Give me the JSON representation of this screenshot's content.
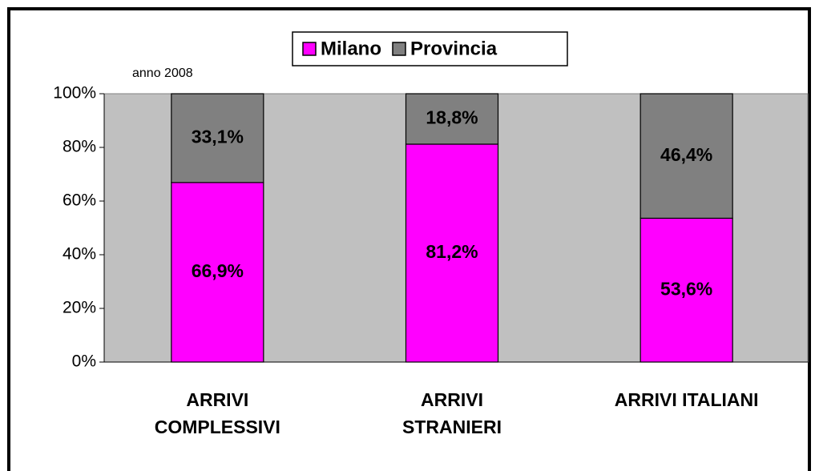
{
  "chart_data": {
    "type": "stacked_bar",
    "subtitle": "anno 2008",
    "categories": [
      "ARRIVI COMPLESSIVI",
      "ARRIVI STRANIERI",
      "ARRIVI ITALIANI"
    ],
    "series": [
      {
        "name": "Milano",
        "color": "#ff00ff",
        "values": [
          66.9,
          81.2,
          53.6
        ],
        "value_labels": [
          "66,9%",
          "81,2%",
          "53,6%"
        ]
      },
      {
        "name": "Provincia",
        "color": "#808080",
        "values": [
          33.1,
          18.8,
          46.4
        ],
        "value_labels": [
          "33,1%",
          "18,8%",
          "46,4%"
        ]
      }
    ],
    "ylim": [
      0,
      100
    ],
    "yticks": [
      {
        "value": 0,
        "label": "0%"
      },
      {
        "value": 20,
        "label": "20%"
      },
      {
        "value": 40,
        "label": "40%"
      },
      {
        "value": 60,
        "label": "60%"
      },
      {
        "value": 80,
        "label": "80%"
      },
      {
        "value": 100,
        "label": "100%"
      }
    ],
    "plot_background": "#c0c0c0",
    "legend": "top"
  }
}
